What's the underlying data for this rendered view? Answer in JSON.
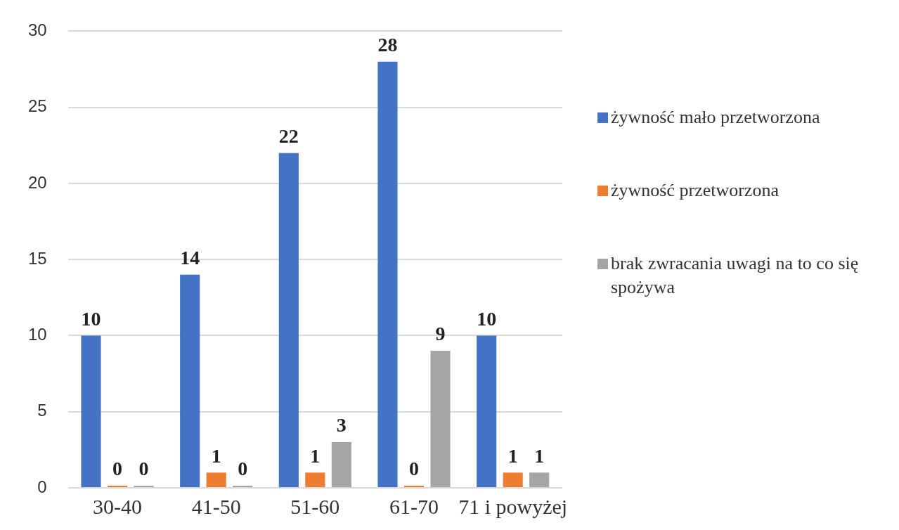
{
  "chart_data": {
    "type": "bar",
    "categories": [
      "30-40",
      "41-50",
      "51-60",
      "61-70",
      "71 i powyżej"
    ],
    "series": [
      {
        "name": "żywność mało przetworzona",
        "color": "#4472c4",
        "values": [
          10,
          14,
          22,
          28,
          10
        ]
      },
      {
        "name": "żywność przetworzona",
        "color": "#ed7d31",
        "values": [
          0,
          1,
          1,
          0,
          1
        ]
      },
      {
        "name": "brak zwracania uwagi na to co się spożywa",
        "color": "#a5a5a5",
        "values": [
          0,
          0,
          3,
          9,
          1
        ]
      }
    ],
    "ylim": [
      0,
      30
    ],
    "yticks": [
      0,
      5,
      10,
      15,
      20,
      25,
      30
    ],
    "grid": "y",
    "legend": "right",
    "data_labels": true
  }
}
